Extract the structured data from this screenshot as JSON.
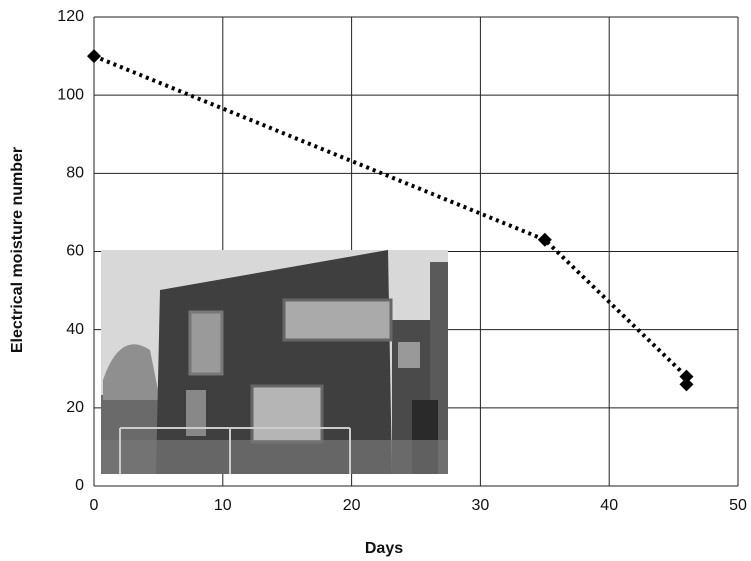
{
  "chart_data": {
    "type": "line",
    "x": [
      0,
      35,
      46,
      46
    ],
    "values": [
      110,
      63,
      28,
      26
    ],
    "color": "#000000",
    "line_style": "dotted",
    "marker": "diamond",
    "xlabel": "Days",
    "ylabel": "Electrical moisture number",
    "xlim": [
      0,
      50
    ],
    "xticks": [
      0,
      10,
      20,
      30,
      40,
      50
    ],
    "ylim": [
      0,
      120
    ],
    "yticks": [
      0,
      20,
      40,
      60,
      80,
      100,
      120
    ],
    "grid": true
  }
}
